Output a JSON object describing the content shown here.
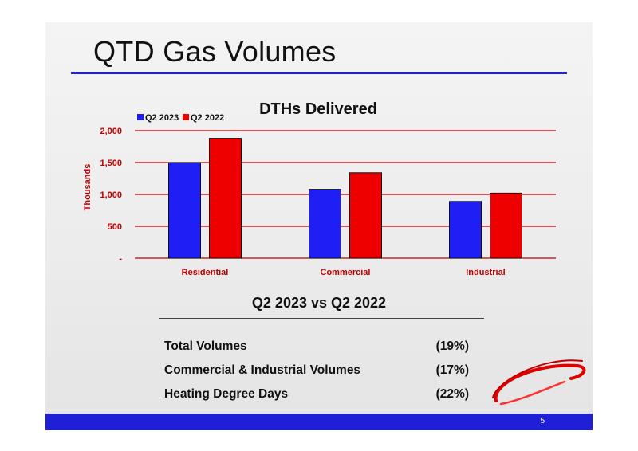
{
  "slide": {
    "title": "QTD Gas Volumes",
    "page_number": "5"
  },
  "chart_data": {
    "type": "bar",
    "title": "DTHs Delivered",
    "ylabel": "Thousands",
    "xlabel": "",
    "ylim": [
      0,
      2000
    ],
    "yticks": [
      {
        "value": 0,
        "label": "-"
      },
      {
        "value": 500,
        "label": "500"
      },
      {
        "value": 1000,
        "label": "1,000"
      },
      {
        "value": 1500,
        "label": "1,500"
      },
      {
        "value": 2000,
        "label": "2,000"
      }
    ],
    "categories": [
      "Residential",
      "Commercial",
      "Industrial"
    ],
    "series": [
      {
        "name": "Q2 2023",
        "color": "#1f1ff5",
        "values": [
          1500,
          1080,
          890
        ]
      },
      {
        "name": "Q2 2022",
        "color": "#ee0000",
        "values": [
          1880,
          1340,
          1020
        ]
      }
    ],
    "legend_position": "top-left",
    "grid": true,
    "grid_color": "#c00000",
    "label_color": "#c00000"
  },
  "comparison": {
    "heading": "Q2 2023 vs Q2 2022",
    "rows": [
      {
        "label": "Total Volumes",
        "value": "(19%)"
      },
      {
        "label": "Commercial & Industrial Volumes",
        "value": "(17%)"
      },
      {
        "label": "Heating Degree Days",
        "value": "(22%)"
      }
    ]
  },
  "colors": {
    "accent": "#1f1fd6",
    "brand_red": "#e00000"
  },
  "logo": {
    "icon": "swoosh-logo-icon"
  }
}
